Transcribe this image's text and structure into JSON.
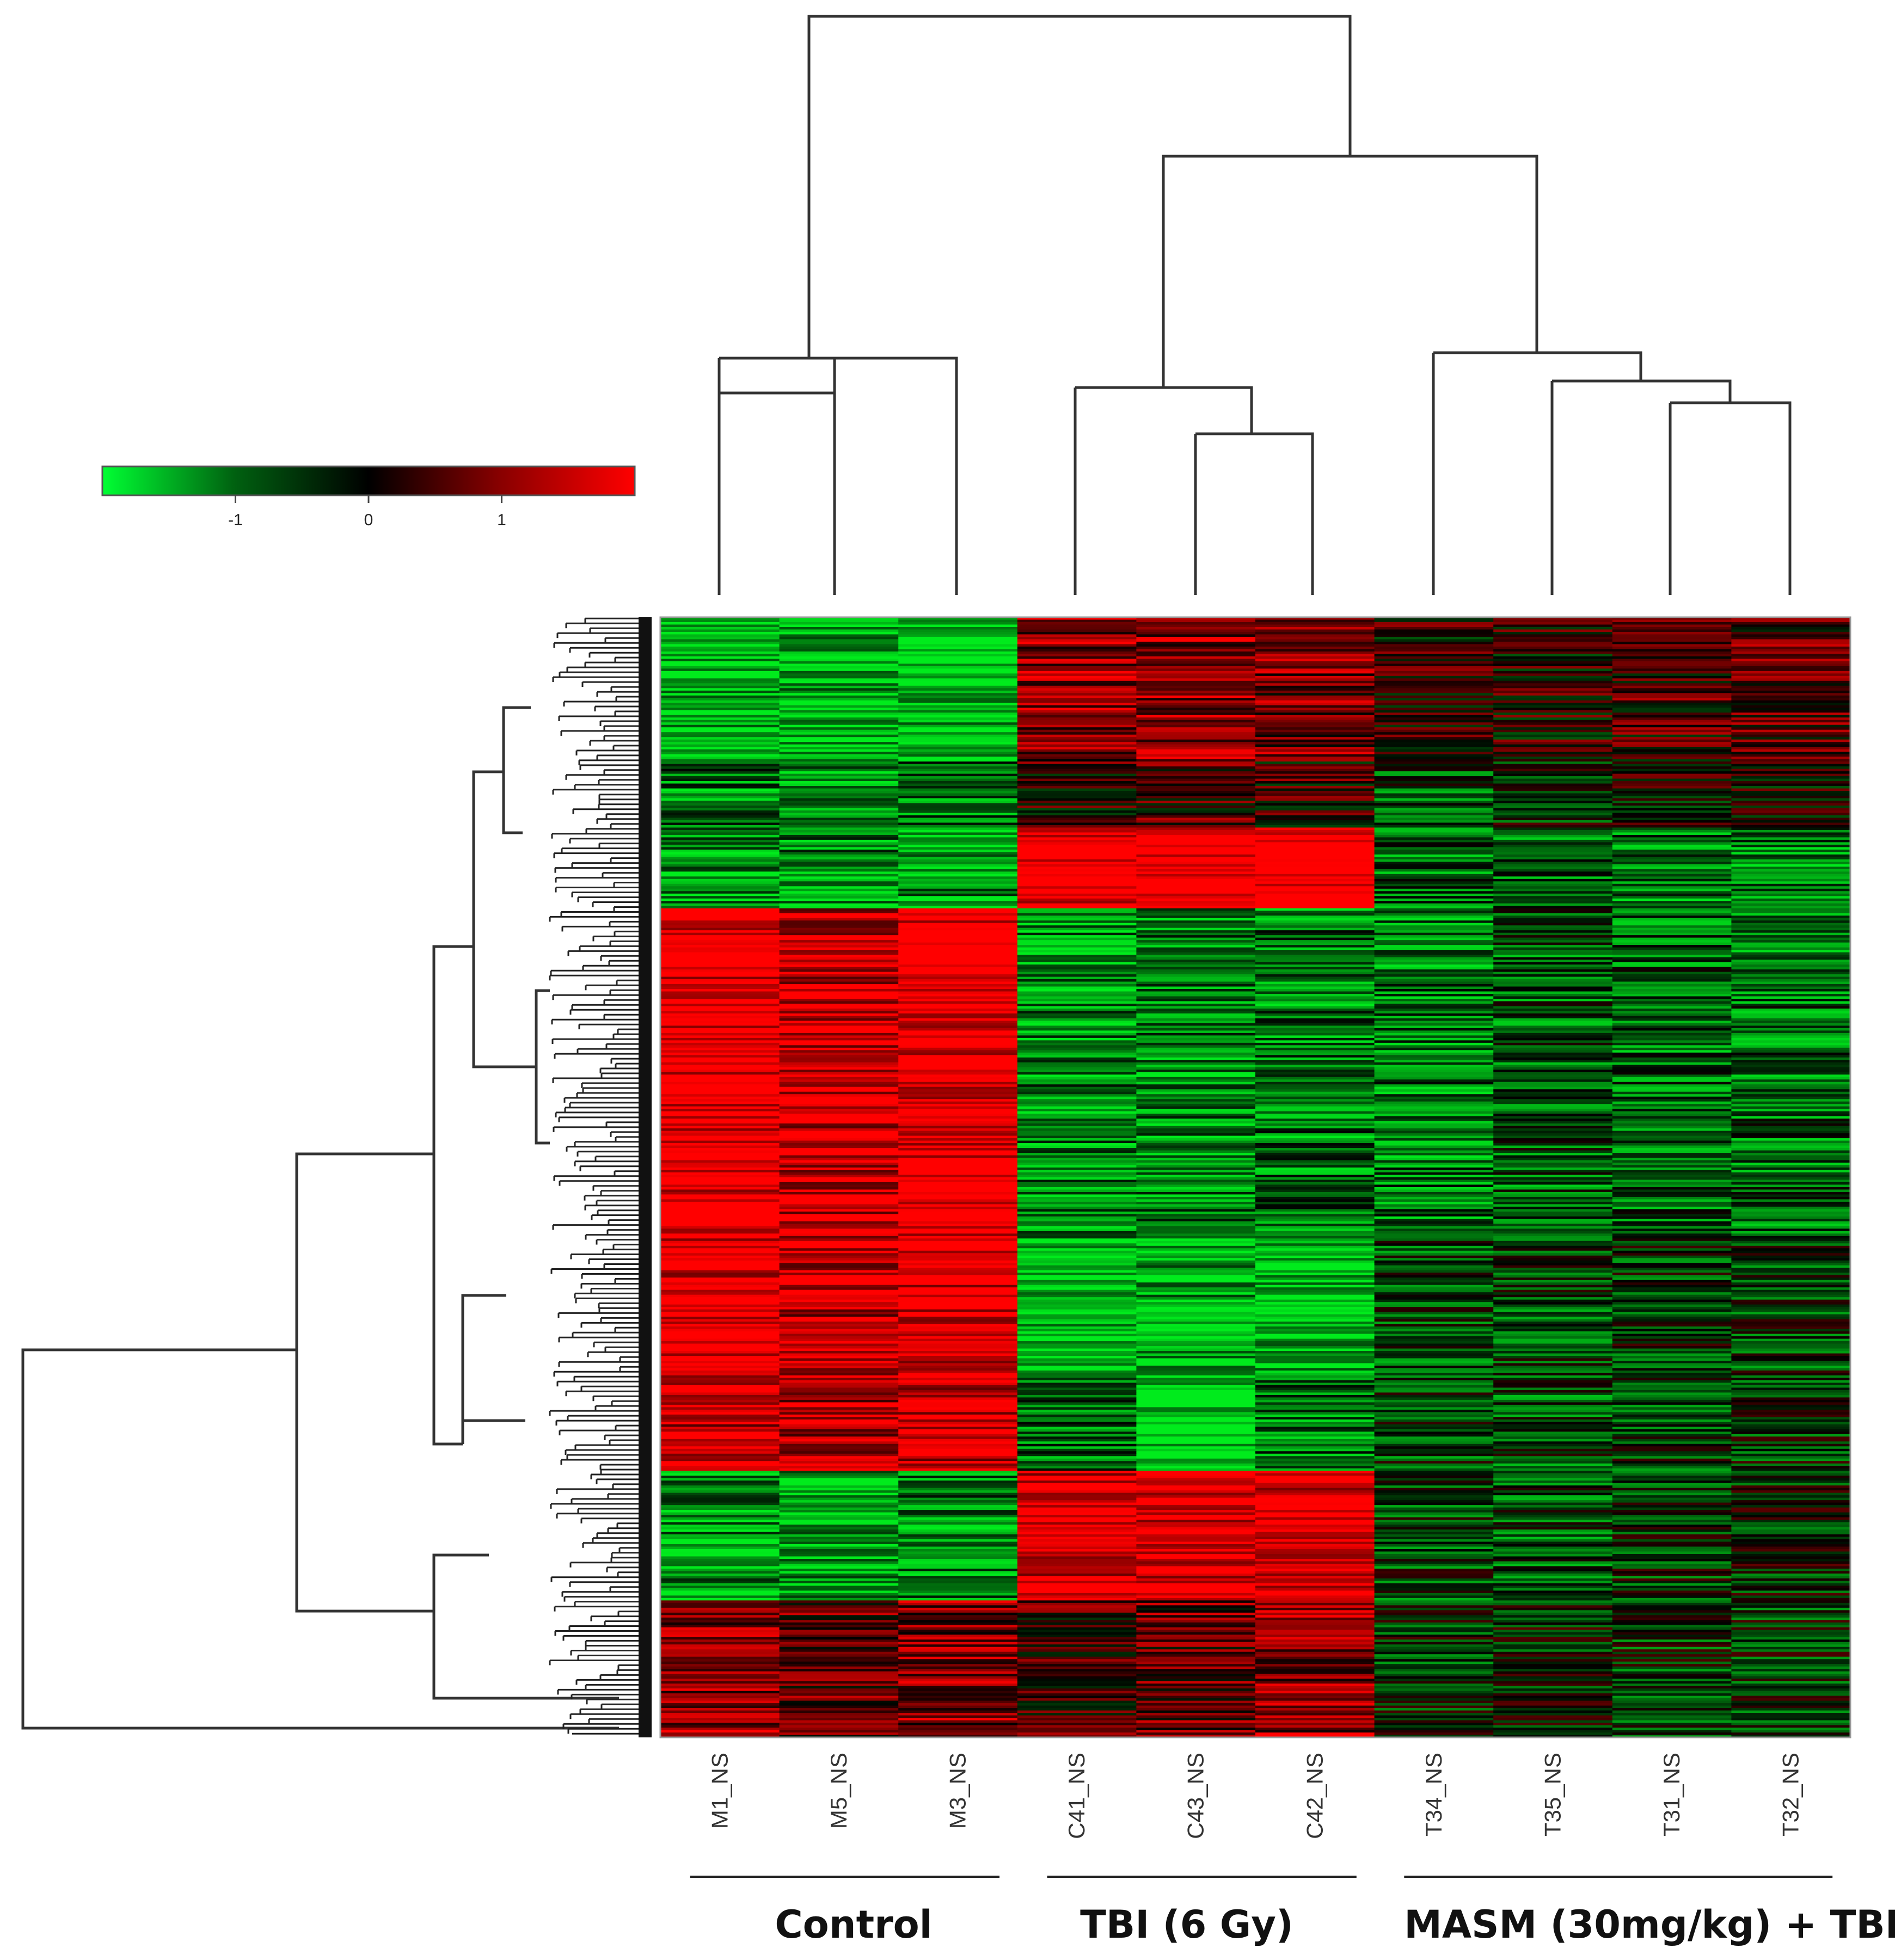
{
  "chart_data": {
    "type": "heatmap",
    "colorbar": {
      "colors": {
        "low": "#00ff33",
        "mid": "#000000",
        "high": "#ff0000"
      },
      "range": [
        -2,
        2
      ],
      "ticks": [
        {
          "value": -1,
          "label": "-1"
        },
        {
          "value": 0,
          "label": "0"
        },
        {
          "value": 1,
          "label": "1"
        }
      ]
    },
    "columns": [
      "M1_NS",
      "M5_NS",
      "M3_NS",
      "C41_NS",
      "C43_NS",
      "C42_NS",
      "T34_NS",
      "T35_NS",
      "T31_NS",
      "T32_NS"
    ],
    "groups": [
      {
        "name": "Control",
        "columns": [
          "M1_NS",
          "M5_NS",
          "M3_NS"
        ]
      },
      {
        "name": "TBI (6 Gy)",
        "columns": [
          "C41_NS",
          "C43_NS",
          "C42_NS"
        ]
      },
      {
        "name": "MASM (30mg/kg) + TBI",
        "columns": [
          "T34_NS",
          "T35_NS",
          "T31_NS",
          "T32_NS"
        ]
      }
    ],
    "row_blocks": [
      {
        "rows": 58,
        "values": [
          -1.3,
          -1.2,
          -1.3,
          0.9,
          0.9,
          0.7,
          0.2,
          0.2,
          0.4,
          0.5
        ]
      },
      {
        "rows": 28,
        "values": [
          -0.8,
          -1.0,
          -0.8,
          0.3,
          0.4,
          0.3,
          -0.5,
          -0.2,
          0.1,
          0.2
        ]
      },
      {
        "rows": 33,
        "values": [
          -1.0,
          -0.9,
          -1.0,
          1.7,
          1.8,
          1.8,
          -0.7,
          -0.7,
          -0.8,
          -0.8
        ]
      },
      {
        "rows": 135,
        "values": [
          1.6,
          1.3,
          1.6,
          -0.9,
          -0.9,
          -0.8,
          -0.8,
          -0.6,
          -0.7,
          -0.7
        ]
      },
      {
        "rows": 55,
        "values": [
          1.5,
          1.2,
          1.5,
          -1.4,
          -1.2,
          -1.3,
          -0.5,
          -0.4,
          -0.3,
          -0.4
        ]
      },
      {
        "rows": 40,
        "values": [
          1.3,
          1.1,
          1.3,
          -0.8,
          -1.5,
          -0.8,
          -0.4,
          -0.5,
          -0.4,
          -0.3
        ]
      },
      {
        "rows": 53,
        "values": [
          -1.0,
          -1.1,
          -0.9,
          1.4,
          1.5,
          1.5,
          -0.4,
          -0.5,
          -0.3,
          -0.2
        ]
      },
      {
        "rows": 56,
        "values": [
          0.8,
          0.6,
          0.8,
          0.4,
          0.6,
          0.9,
          -0.3,
          -0.2,
          -0.3,
          -0.3
        ]
      }
    ],
    "row_dendrogram": "hierarchical clustering of rows (left)",
    "column_dendrogram": "hierarchical clustering of columns (top)"
  }
}
